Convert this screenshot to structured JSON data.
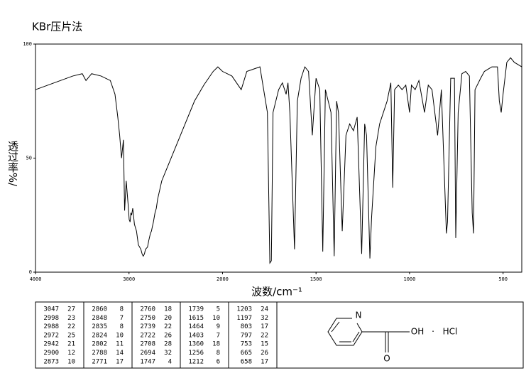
{
  "chart_data": {
    "type": "line",
    "title": "KBr压片法",
    "xlabel": "波数/cm⁻¹",
    "ylabel": "透过率%/",
    "color": "#000000",
    "xlim": [
      4000,
      400
    ],
    "xticks": [
      4000,
      3000,
      2000,
      1500,
      1000,
      500
    ],
    "ylim": [
      0,
      100
    ],
    "yticks": [
      0,
      50,
      100
    ],
    "x": [
      4000,
      3800,
      3600,
      3500,
      3460,
      3400,
      3300,
      3200,
      3150,
      3120,
      3100,
      3080,
      3060,
      3047,
      3030,
      3010,
      2998,
      2988,
      2980,
      2972,
      2960,
      2942,
      2920,
      2900,
      2873,
      2860,
      2848,
      2835,
      2824,
      2802,
      2788,
      2771,
      2760,
      2750,
      2739,
      2722,
      2708,
      2694,
      2650,
      2600,
      2500,
      2400,
      2300,
      2200,
      2100,
      2050,
      2000,
      1950,
      1900,
      1870,
      1800,
      1760,
      1747,
      1739,
      1730,
      1700,
      1680,
      1660,
      1650,
      1640,
      1615,
      1600,
      1580,
      1560,
      1540,
      1520,
      1500,
      1480,
      1464,
      1450,
      1420,
      1403,
      1390,
      1380,
      1360,
      1340,
      1320,
      1300,
      1280,
      1256,
      1240,
      1230,
      1212,
      1203,
      1197,
      1180,
      1160,
      1140,
      1120,
      1100,
      1090,
      1080,
      1060,
      1040,
      1020,
      1000,
      990,
      970,
      950,
      920,
      900,
      880,
      850,
      830,
      803,
      797,
      780,
      760,
      753,
      740,
      720,
      700,
      680,
      665,
      658,
      650,
      620,
      600,
      560,
      530,
      520,
      510,
      500,
      480,
      460,
      440,
      400
    ],
    "values": [
      80,
      83,
      86,
      87,
      84,
      87,
      86,
      84,
      78,
      68,
      60,
      50,
      58,
      27,
      40,
      30,
      23,
      22,
      26,
      25,
      28,
      21,
      18,
      12,
      10,
      8,
      7,
      8,
      10,
      11,
      14,
      17,
      18,
      20,
      22,
      26,
      28,
      32,
      40,
      45,
      55,
      65,
      75,
      82,
      88,
      90,
      88,
      86,
      80,
      88,
      90,
      70,
      4,
      5,
      70,
      80,
      83,
      78,
      83,
      70,
      10,
      75,
      85,
      90,
      88,
      60,
      85,
      80,
      9,
      80,
      70,
      7,
      75,
      70,
      18,
      60,
      65,
      62,
      68,
      8,
      65,
      60,
      6,
      24,
      32,
      55,
      65,
      70,
      75,
      83,
      37,
      80,
      82,
      80,
      82,
      70,
      82,
      80,
      84,
      70,
      82,
      80,
      60,
      80,
      17,
      22,
      85,
      85,
      15,
      70,
      87,
      88,
      86,
      26,
      17,
      80,
      85,
      88,
      90,
      90,
      75,
      70,
      78,
      92,
      94,
      92,
      90
    ]
  },
  "peak_table": {
    "columns": [
      [
        [
          3047,
          27
        ],
        [
          2998,
          23
        ],
        [
          2988,
          22
        ],
        [
          2972,
          25
        ],
        [
          2942,
          21
        ],
        [
          2900,
          12
        ],
        [
          2873,
          10
        ]
      ],
      [
        [
          2860,
          8
        ],
        [
          2848,
          7
        ],
        [
          2835,
          8
        ],
        [
          2824,
          10
        ],
        [
          2802,
          11
        ],
        [
          2788,
          14
        ],
        [
          2771,
          17
        ]
      ],
      [
        [
          2760,
          18
        ],
        [
          2750,
          20
        ],
        [
          2739,
          22
        ],
        [
          2722,
          26
        ],
        [
          2708,
          28
        ],
        [
          2694,
          32
        ],
        [
          1747,
          4
        ]
      ],
      [
        [
          1739,
          5
        ],
        [
          1615,
          10
        ],
        [
          1464,
          9
        ],
        [
          1403,
          7
        ],
        [
          1360,
          18
        ],
        [
          1256,
          8
        ],
        [
          1212,
          6
        ]
      ],
      [
        [
          1203,
          24
        ],
        [
          1197,
          32
        ],
        [
          803,
          17
        ],
        [
          797,
          22
        ],
        [
          753,
          15
        ],
        [
          665,
          26
        ],
        [
          658,
          17
        ]
      ]
    ]
  },
  "structure": {
    "n": "N",
    "oh": "OH",
    "dot": "·",
    "hcl": "HCl",
    "o": "O"
  }
}
